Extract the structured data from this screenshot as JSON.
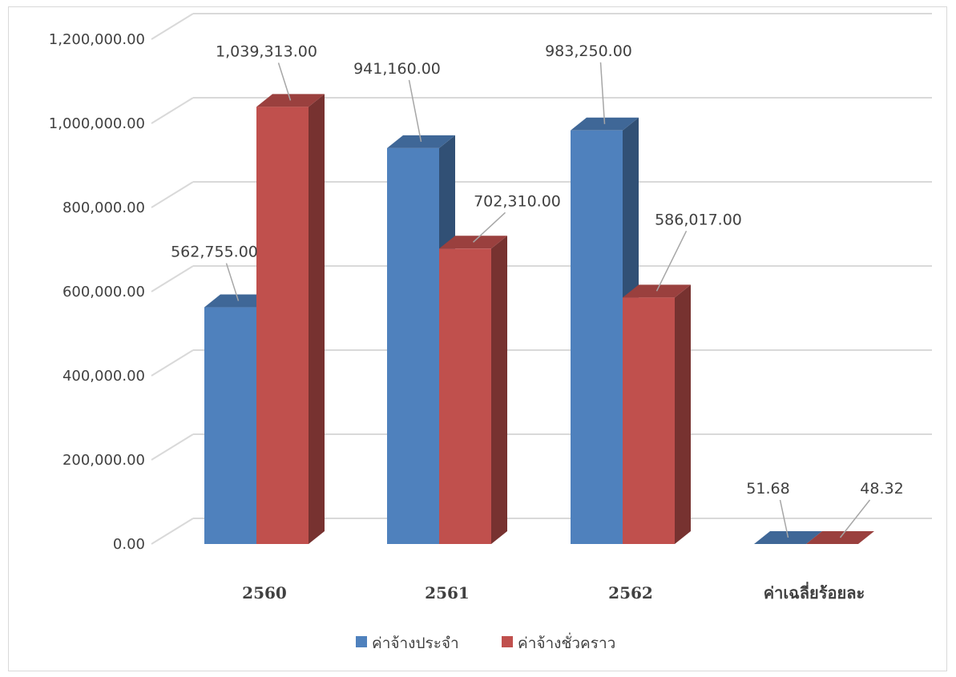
{
  "chart_data": {
    "type": "bar",
    "style": "3d-clustered-column",
    "categories": [
      "2560",
      "2561",
      "2562",
      "ค่าเฉลี่ยร้อยละ"
    ],
    "series": [
      {
        "name": "ค่าจ้างประจำ",
        "color": "#4f81bd",
        "values": [
          562755,
          941160,
          983250,
          51.68
        ],
        "labels": [
          "562,755.00",
          "941,160.00",
          "983,250.00",
          "51.68"
        ]
      },
      {
        "name": "ค่าจ้างชั่วคราว",
        "color": "#c0504d",
        "values": [
          1039313,
          702310,
          586017,
          48.32
        ],
        "labels": [
          "1,039,313.00",
          "702,310.00",
          "586,017.00",
          "48.32"
        ]
      }
    ],
    "y_ticks": [
      "0.00",
      "200,000.00",
      "400,000.00",
      "600,000.00",
      "800,000.00",
      "1,000,000.00",
      "1,200,000.00"
    ],
    "ylim": [
      0,
      1200000
    ],
    "title": "",
    "xlabel": "",
    "ylabel": "",
    "grid": true,
    "legend_position": "bottom"
  }
}
